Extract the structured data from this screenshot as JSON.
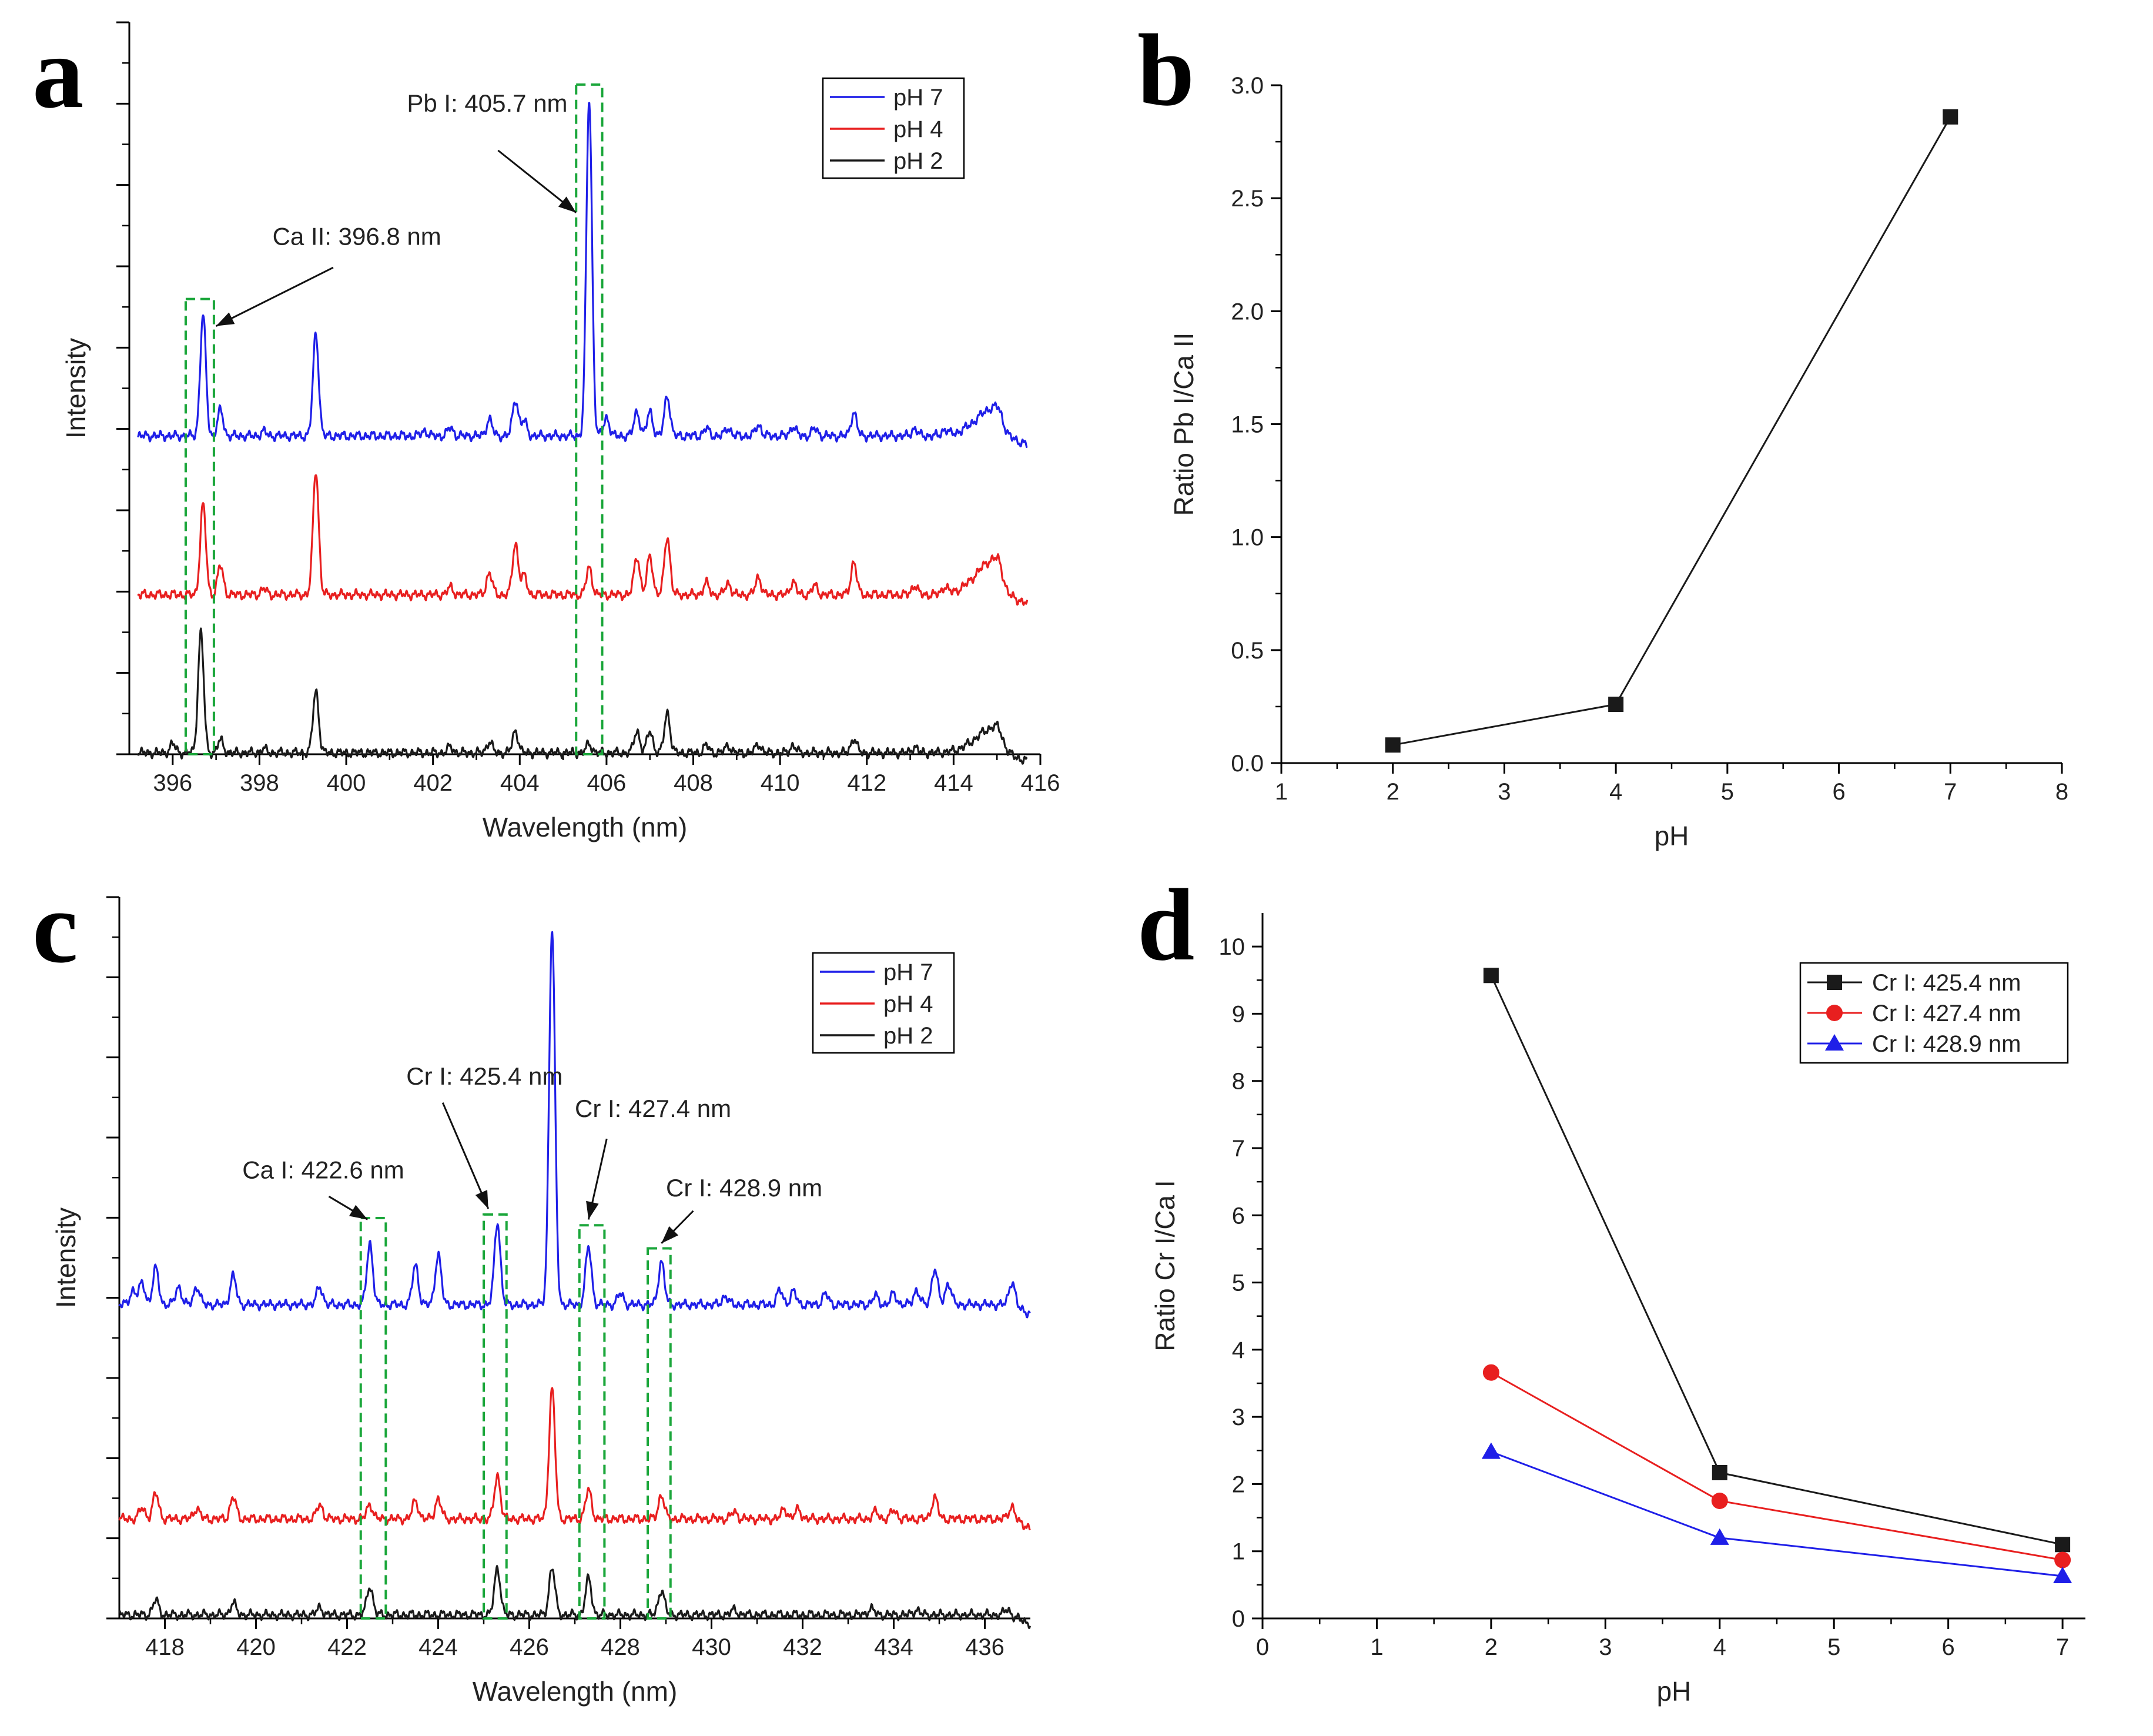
{
  "colors": {
    "blue": "#1f1fe8",
    "red": "#e81f1f",
    "black": "#1a1a1a",
    "green": "#1aa63a",
    "axis": "#000000"
  },
  "chart_data": [
    {
      "panel": "a",
      "type": "line",
      "xlabel": "Wavelength (nm)",
      "ylabel": "Intensity",
      "xlim": [
        395,
        416
      ],
      "ylim": [
        0,
        100
      ],
      "xticks": [
        396,
        398,
        400,
        402,
        404,
        406,
        408,
        410,
        412,
        414,
        416
      ],
      "x_start": 395.2,
      "x_end": 415.7,
      "legend": {
        "placement": "top-right",
        "entries": [
          {
            "label": "pH 7",
            "color": "blue"
          },
          {
            "label": "pH 4",
            "color": "red"
          },
          {
            "label": "pH 2",
            "color": "black"
          }
        ]
      },
      "series": [
        {
          "name": "pH 7",
          "color": "blue",
          "baseline": 43.5,
          "end_drop": 42.5,
          "peaks": [
            [
              396.7,
              16.5
            ],
            [
              397.1,
              3.5
            ],
            [
              398.1,
              0.6
            ],
            [
              399.3,
              14
            ],
            [
              401.8,
              0.7
            ],
            [
              402.4,
              1.1
            ],
            [
              403.3,
              2.3
            ],
            [
              403.9,
              5
            ],
            [
              404.1,
              2
            ],
            [
              405.6,
              46
            ],
            [
              406.0,
              2.5
            ],
            [
              406.7,
              3.3
            ],
            [
              407.0,
              3.3
            ],
            [
              407.4,
              5.5
            ],
            [
              408.3,
              1
            ],
            [
              408.8,
              1.1
            ],
            [
              409.5,
              1.5
            ],
            [
              410.3,
              1.3
            ],
            [
              410.8,
              1
            ],
            [
              411.7,
              3.2
            ],
            [
              413.1,
              1
            ],
            [
              413.8,
              0.8
            ]
          ],
          "bump": [
            415.0,
            4
          ]
        },
        {
          "name": "pH 4",
          "color": "red",
          "baseline": 21.8,
          "end_drop": 21.5,
          "peaks": [
            [
              396.7,
              12.3
            ],
            [
              397.1,
              4
            ],
            [
              398.1,
              0.8
            ],
            [
              399.3,
              17
            ],
            [
              402.4,
              1
            ],
            [
              403.3,
              3
            ],
            [
              403.9,
              7
            ],
            [
              404.1,
              2.5
            ],
            [
              405.6,
              3.7
            ],
            [
              406.7,
              5.3
            ],
            [
              407.0,
              5.3
            ],
            [
              407.4,
              8
            ],
            [
              408.3,
              1.6
            ],
            [
              408.8,
              1.6
            ],
            [
              409.5,
              2.4
            ],
            [
              410.3,
              1.8
            ],
            [
              410.8,
              1.2
            ],
            [
              411.7,
              4.5
            ],
            [
              413.1,
              1.3
            ],
            [
              413.8,
              1
            ]
          ],
          "bump": [
            415.0,
            5
          ]
        },
        {
          "name": "pH 2",
          "color": "black",
          "baseline": 0.2,
          "end_drop": 0.2,
          "peaks": [
            [
              396.0,
              1.2
            ],
            [
              396.65,
              16.5
            ],
            [
              397.1,
              1.7
            ],
            [
              398.1,
              0.5
            ],
            [
              399.3,
              8.5
            ],
            [
              402.4,
              0.8
            ],
            [
              403.3,
              1.5
            ],
            [
              403.9,
              3
            ],
            [
              405.6,
              1.2
            ],
            [
              406.7,
              3
            ],
            [
              407.0,
              3
            ],
            [
              407.4,
              5.5
            ],
            [
              408.3,
              1
            ],
            [
              408.8,
              1
            ],
            [
              409.5,
              1.2
            ],
            [
              410.3,
              1
            ],
            [
              411.7,
              2
            ],
            [
              413.1,
              0.8
            ]
          ],
          "bump": [
            415.0,
            3.6
          ]
        }
      ],
      "boxes": [
        {
          "x0": 396.3,
          "x1": 396.95,
          "ytop": 62.2
        },
        {
          "x0": 405.3,
          "x1": 405.9,
          "ytop": 91.5
        }
      ],
      "annotations": [
        {
          "text": "Pb I: 405.7 nm",
          "label_x": 401.4,
          "label_y": 87.8,
          "tail": [
            403.5,
            82.5
          ],
          "head": [
            405.3,
            74
          ]
        },
        {
          "text": "Ca II: 396.8 nm",
          "label_x": 398.3,
          "label_y": 69.6,
          "tail": [
            399.7,
            66.5
          ],
          "head": [
            397.0,
            58.5
          ]
        }
      ]
    },
    {
      "panel": "b",
      "type": "line",
      "xlabel": "pH",
      "ylabel": "Ratio Pb I/Ca II",
      "xlim": [
        1,
        8
      ],
      "ylim": [
        0,
        3.0
      ],
      "xticks": [
        1,
        2,
        3,
        4,
        5,
        6,
        7,
        8
      ],
      "yticks": [
        "0.0",
        "0.5",
        "1.0",
        "1.5",
        "2.0",
        "2.5",
        "3.0"
      ],
      "series": [
        {
          "name": "Pb I/Ca II",
          "color": "black",
          "marker": "square",
          "x": [
            2,
            4,
            7
          ],
          "y": [
            0.08,
            0.26,
            2.86
          ]
        }
      ]
    },
    {
      "panel": "c",
      "type": "line",
      "xlabel": "Wavelength (nm)",
      "ylabel": "Intensity",
      "xlim": [
        417,
        437
      ],
      "ylim": [
        0,
        100
      ],
      "xticks": [
        418,
        420,
        422,
        424,
        426,
        428,
        430,
        432,
        434,
        436
      ],
      "x_start": 417.0,
      "x_end": 437.0,
      "legend": {
        "placement": "top-right",
        "entries": [
          {
            "label": "pH 7",
            "color": "blue"
          },
          {
            "label": "pH 4",
            "color": "red"
          },
          {
            "label": "pH 2",
            "color": "black"
          }
        ]
      },
      "series": [
        {
          "name": "pH 7",
          "color": "blue",
          "baseline": 43.5,
          "end_drop": 42.5,
          "peaks": [
            [
              417.3,
              2
            ],
            [
              417.5,
              3
            ],
            [
              417.8,
              5
            ],
            [
              418.3,
              2.5
            ],
            [
              418.7,
              2.5
            ],
            [
              419.5,
              4
            ],
            [
              421.4,
              2.5
            ],
            [
              422.5,
              8.5
            ],
            [
              423.5,
              5.5
            ],
            [
              424.0,
              7
            ],
            [
              425.3,
              11.5
            ],
            [
              426.5,
              52
            ],
            [
              427.3,
              8
            ],
            [
              428.0,
              1.5
            ],
            [
              428.9,
              6
            ],
            [
              430.3,
              1.2
            ],
            [
              431.5,
              2
            ],
            [
              431.8,
              1.8
            ],
            [
              432.5,
              1.5
            ],
            [
              433.6,
              1.2
            ],
            [
              434.0,
              1.5
            ],
            [
              434.5,
              2
            ],
            [
              434.9,
              5
            ],
            [
              435.2,
              3
            ],
            [
              436.6,
              3.5
            ]
          ]
        },
        {
          "name": "pH 4",
          "color": "red",
          "baseline": 13.8,
          "end_drop": 13.0,
          "peaks": [
            [
              417.5,
              1.5
            ],
            [
              417.8,
              3.5
            ],
            [
              418.7,
              1.5
            ],
            [
              419.5,
              3
            ],
            [
              421.4,
              2
            ],
            [
              422.5,
              2
            ],
            [
              423.5,
              2.5
            ],
            [
              424.0,
              2.8
            ],
            [
              425.3,
              6
            ],
            [
              426.5,
              18
            ],
            [
              427.3,
              4
            ],
            [
              428.9,
              3.3
            ],
            [
              430.5,
              1
            ],
            [
              431.6,
              1.4
            ],
            [
              431.9,
              1.3
            ],
            [
              433.6,
              1
            ],
            [
              434.0,
              1.2
            ],
            [
              434.9,
              3
            ],
            [
              436.6,
              2
            ]
          ]
        },
        {
          "name": "pH 2",
          "color": "black",
          "baseline": 0.5,
          "end_drop": 0.3,
          "peaks": [
            [
              417.8,
              2
            ],
            [
              419.5,
              1.6
            ],
            [
              421.4,
              1
            ],
            [
              422.5,
              4
            ],
            [
              425.3,
              6.5
            ],
            [
              426.5,
              6.5
            ],
            [
              427.3,
              5
            ],
            [
              428.9,
              3.5
            ],
            [
              430.5,
              0.7
            ],
            [
              433.5,
              0.9
            ],
            [
              434.5,
              0.7
            ],
            [
              436.5,
              0.8
            ]
          ]
        }
      ],
      "boxes": [
        {
          "x0": 422.3,
          "x1": 422.85,
          "ytop": 55.5
        },
        {
          "x0": 425.0,
          "x1": 425.5,
          "ytop": 56.0
        },
        {
          "x0": 427.1,
          "x1": 427.65,
          "ytop": 54.5
        },
        {
          "x0": 428.6,
          "x1": 429.1,
          "ytop": 51.3
        }
      ],
      "annotations": [
        {
          "text": "Ca I: 422.6 nm",
          "label_x": 419.7,
          "label_y": 61.0,
          "tail": [
            421.6,
            58.5
          ],
          "head": [
            422.45,
            55.3
          ]
        },
        {
          "text": "Cr I: 425.4 nm",
          "label_x": 423.3,
          "label_y": 74.0,
          "tail": [
            424.1,
            71.5
          ],
          "head": [
            425.1,
            56.8
          ]
        },
        {
          "text": "Cr I: 427.4 nm",
          "label_x": 427.0,
          "label_y": 69.5,
          "tail": [
            427.7,
            66.5
          ],
          "head": [
            427.3,
            55.3
          ]
        },
        {
          "text": "Cr I: 428.9 nm",
          "label_x": 429.0,
          "label_y": 58.5,
          "tail": [
            429.6,
            56.5
          ],
          "head": [
            428.9,
            52.0
          ]
        }
      ]
    },
    {
      "panel": "d",
      "type": "line",
      "xlabel": "pH",
      "ylabel": "Ratio Cr I/Ca I",
      "xlim": [
        0,
        7.2
      ],
      "ylim": [
        0,
        10.5
      ],
      "xticks": [
        0,
        1,
        2,
        3,
        4,
        5,
        6,
        7
      ],
      "yticks": [
        0,
        1,
        2,
        3,
        4,
        5,
        6,
        7,
        8,
        9,
        10
      ],
      "legend": {
        "placement": "top-right"
      },
      "series": [
        {
          "name": "Cr I: 425.4 nm",
          "color": "black",
          "marker": "square",
          "x": [
            2,
            4,
            7
          ],
          "y": [
            9.57,
            2.17,
            1.1
          ]
        },
        {
          "name": "Cr I: 427.4 nm",
          "color": "red",
          "marker": "circle",
          "x": [
            2,
            4,
            7
          ],
          "y": [
            3.66,
            1.75,
            0.87
          ]
        },
        {
          "name": "Cr I: 428.9 nm",
          "color": "blue",
          "marker": "triangle",
          "x": [
            2,
            4,
            7
          ],
          "y": [
            2.48,
            1.2,
            0.63
          ]
        }
      ]
    }
  ]
}
